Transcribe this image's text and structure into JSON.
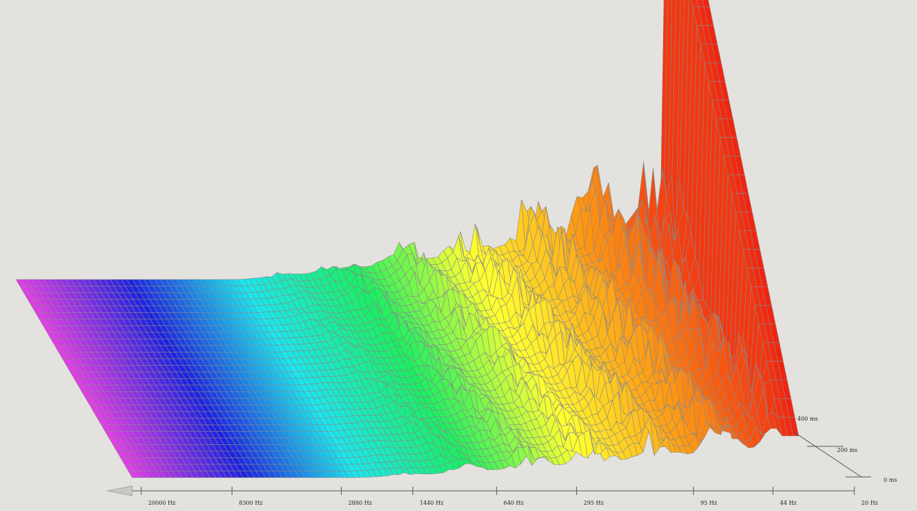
{
  "chart_data": {
    "type": "surface",
    "title": "",
    "xlabel": "",
    "ylabel": "",
    "x_axis": {
      "scale": "log",
      "direction": "decreasing-left-to-right",
      "ticks": [
        {
          "hz": 20000,
          "label": "20000 Hz"
        },
        {
          "hz": 8300,
          "label": "8300 Hz"
        },
        {
          "hz": 2880,
          "label": "2880 Hz"
        },
        {
          "hz": 1440,
          "label": "1440 Hz"
        },
        {
          "hz": 640,
          "label": "640 Hz"
        },
        {
          "hz": 295,
          "label": "295 Hz"
        },
        {
          "hz": 95,
          "label": "95 Hz"
        },
        {
          "hz": 44,
          "label": "44 Hz"
        },
        {
          "hz": 20,
          "label": "20 Hz"
        }
      ]
    },
    "time_axis": {
      "ticks": [
        {
          "ms": 0,
          "label": "0 ms"
        },
        {
          "ms": 200,
          "label": "200 ms"
        },
        {
          "ms": 400,
          "label": "400 ms"
        }
      ]
    },
    "color_scale": [
      "#e23be8",
      "#1c22e0",
      "#18e8f0",
      "#18f060",
      "#ffff30",
      "#ff9a12",
      "#f01e10"
    ],
    "grid": true
  }
}
